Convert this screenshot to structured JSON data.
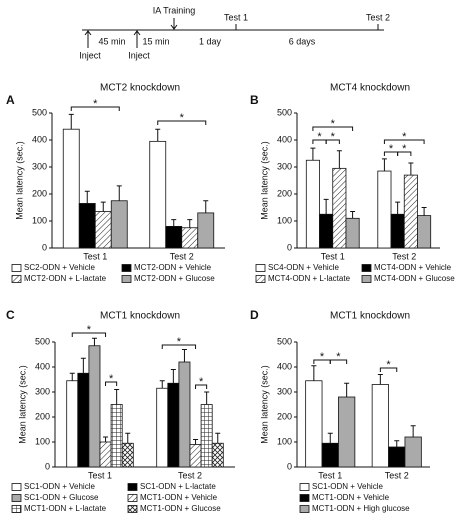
{
  "timeline": {
    "labels": [
      "IA Training",
      "Test 1",
      "Test 2",
      "45 min",
      "15 min",
      "1 day",
      "6 days",
      "Inject",
      "Inject"
    ]
  },
  "chart_data": [
    {
      "type": "bar",
      "panel_label": "A",
      "title": "MCT2 knockdown",
      "y_label": "Mean latency (sec.)",
      "categories": [
        "Test 1",
        "Test 2"
      ],
      "ylim": [
        0,
        500
      ],
      "yticks": [
        0,
        100,
        200,
        300,
        400,
        500
      ],
      "series": [
        {
          "name": "SC2-ODN + Vehicle",
          "color": "#ffffff",
          "values": [
            440,
            395
          ],
          "errors": [
            55,
            45
          ]
        },
        {
          "name": "MCT2-ODN + Vehicle",
          "color": "#000000",
          "values": [
            165,
            80
          ],
          "errors": [
            45,
            25
          ]
        },
        {
          "name": "MCT2-ODN + L-lactate",
          "color": "#ffffff",
          "hatch": "diagonal",
          "values": [
            135,
            75
          ],
          "errors": [
            35,
            30
          ]
        },
        {
          "name": "MCT2-ODN + Glucose",
          "color": "#aaaaaa",
          "values": [
            175,
            130
          ],
          "errors": [
            55,
            45
          ]
        }
      ],
      "annotations": [
        "*",
        "*"
      ]
    },
    {
      "type": "bar",
      "panel_label": "B",
      "title": "MCT4 knockdown",
      "y_label": "Mean latency (sec.)",
      "categories": [
        "Test 1",
        "Test 2"
      ],
      "ylim": [
        0,
        500
      ],
      "yticks": [
        0,
        100,
        200,
        300,
        400,
        500
      ],
      "series": [
        {
          "name": "SC4-ODN + Vehicle",
          "color": "#ffffff",
          "values": [
            325,
            285
          ],
          "errors": [
            45,
            45
          ]
        },
        {
          "name": "MCT4-ODN + Vehicle",
          "color": "#000000",
          "values": [
            125,
            125
          ],
          "errors": [
            55,
            45
          ]
        },
        {
          "name": "MCT4-ODN + L-lactate",
          "color": "#ffffff",
          "hatch": "diagonal",
          "values": [
            295,
            270
          ],
          "errors": [
            65,
            45
          ]
        },
        {
          "name": "MCT4-ODN + Glucose",
          "color": "#aaaaaa",
          "values": [
            110,
            120
          ],
          "errors": [
            25,
            30
          ]
        }
      ],
      "annotations": [
        "*",
        "*",
        "*",
        "*",
        "*",
        "*"
      ]
    },
    {
      "type": "bar",
      "panel_label": "C",
      "title": "MCT1 knockdown",
      "y_label": "Mean latency (sec.)",
      "categories": [
        "Test 1",
        "Test 2"
      ],
      "ylim": [
        0,
        500
      ],
      "yticks": [
        0,
        100,
        200,
        300,
        400,
        500
      ],
      "series": [
        {
          "name": "SC1-ODN + Vehicle",
          "color": "#ffffff",
          "values": [
            345,
            315
          ],
          "errors": [
            30,
            30
          ]
        },
        {
          "name": "SC1-ODN + L-lactate",
          "color": "#000000",
          "values": [
            375,
            335
          ],
          "errors": [
            60,
            55
          ]
        },
        {
          "name": "SC1-ODN + Glucose",
          "color": "#aaaaaa",
          "values": [
            485,
            420
          ],
          "errors": [
            30,
            50
          ]
        },
        {
          "name": "MCT1-ODN + Vehicle",
          "color": "#ffffff",
          "hatch": "diagonal",
          "values": [
            100,
            90
          ],
          "errors": [
            20,
            20
          ]
        },
        {
          "name": "MCT1-ODN + L-lactate",
          "color": "#ffffff",
          "hatch": "grid",
          "values": [
            250,
            250
          ],
          "errors": [
            60,
            50
          ]
        },
        {
          "name": "MCT1-ODN + Glucose",
          "color": "#ffffff",
          "hatch": "cross",
          "values": [
            95,
            95
          ],
          "errors": [
            40,
            40
          ]
        }
      ],
      "annotations": [
        "*",
        "*",
        "*",
        "*"
      ]
    },
    {
      "type": "bar",
      "panel_label": "D",
      "title": "MCT1 knockdown",
      "y_label": "Mean latency (sec.)",
      "categories": [
        "Test 1",
        "Test 2"
      ],
      "ylim": [
        0,
        500
      ],
      "yticks": [
        0,
        100,
        200,
        300,
        400,
        500
      ],
      "series": [
        {
          "name": "SC1-ODN + Vehicle",
          "color": "#ffffff",
          "values": [
            345,
            330
          ],
          "errors": [
            60,
            40
          ]
        },
        {
          "name": "MCT1-ODN + Vehicle",
          "color": "#000000",
          "values": [
            95,
            80
          ],
          "errors": [
            40,
            25
          ]
        },
        {
          "name": "MCT1-ODN + High glucose",
          "color": "#aaaaaa",
          "values": [
            280,
            120
          ],
          "errors": [
            55,
            45
          ]
        }
      ],
      "annotations": [
        "*",
        "*",
        "*"
      ]
    }
  ]
}
